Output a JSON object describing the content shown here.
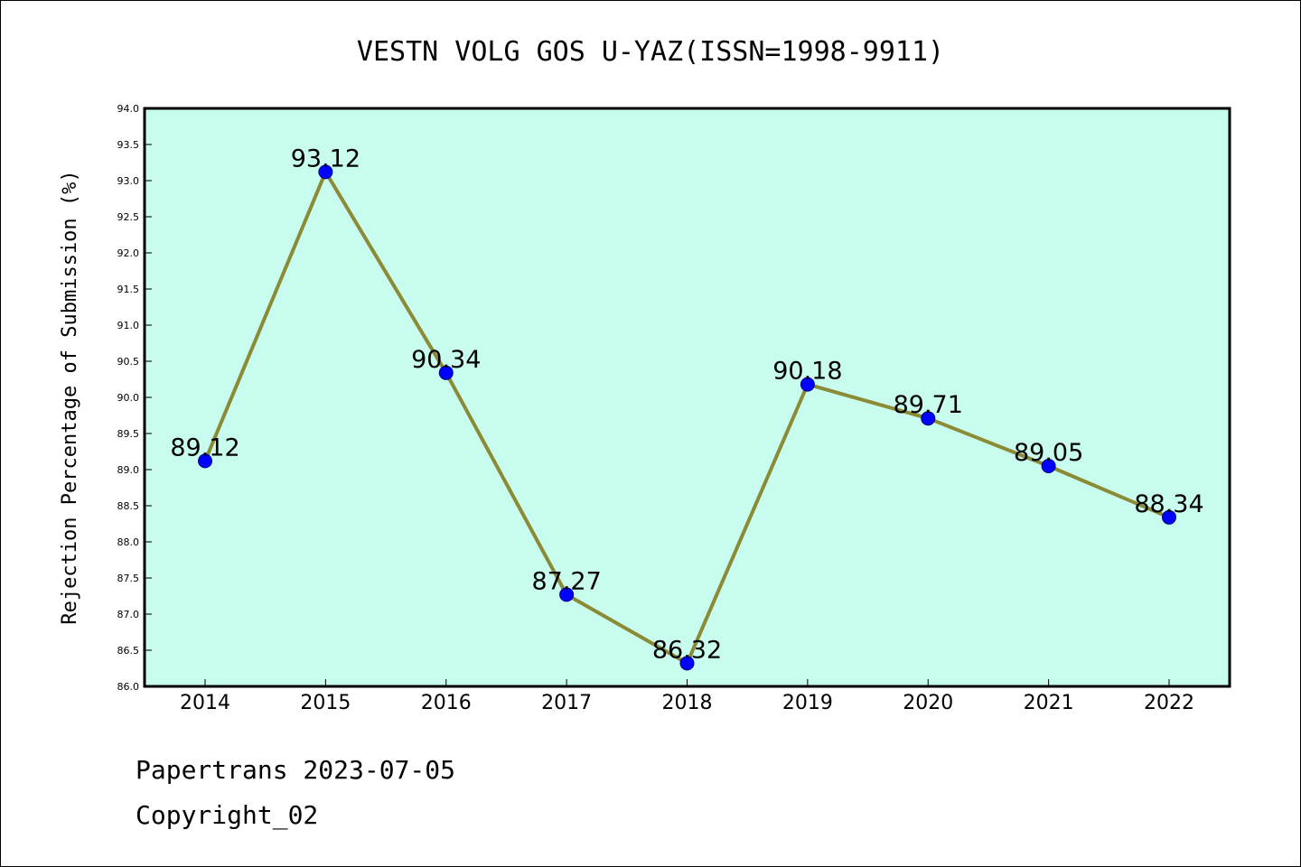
{
  "chart_data": {
    "type": "line",
    "title": "VESTN VOLG GOS U-YAZ(ISSN=1998-9911)",
    "xlabel": "",
    "ylabel": "Rejection Percentage of Submission (%)",
    "categories": [
      "2014",
      "2015",
      "2016",
      "2017",
      "2018",
      "2019",
      "2020",
      "2021",
      "2022"
    ],
    "series": [
      {
        "values": [
          89.12,
          93.12,
          90.34,
          87.27,
          86.32,
          90.18,
          89.71,
          89.05,
          88.34
        ],
        "labels": [
          "89.12",
          "93.12",
          "90.34",
          "87.27",
          "86.32",
          "90.18",
          "89.71",
          "89.05",
          "88.34"
        ]
      }
    ],
    "ylim": [
      86.0,
      94.0
    ],
    "yticks": [
      "86.0",
      "86.5",
      "87.0",
      "87.5",
      "88.0",
      "88.5",
      "89.0",
      "89.5",
      "90.0",
      "90.5",
      "91.0",
      "91.5",
      "92.0",
      "92.5",
      "93.0",
      "93.5",
      "94.0"
    ],
    "grid": false,
    "colors": {
      "plot_background": "#c8fcee",
      "line": "#8b8a35",
      "marker": "#0000ff"
    }
  },
  "footer": {
    "line1": "Papertrans 2023-07-05",
    "line2": "Copyright_02"
  }
}
